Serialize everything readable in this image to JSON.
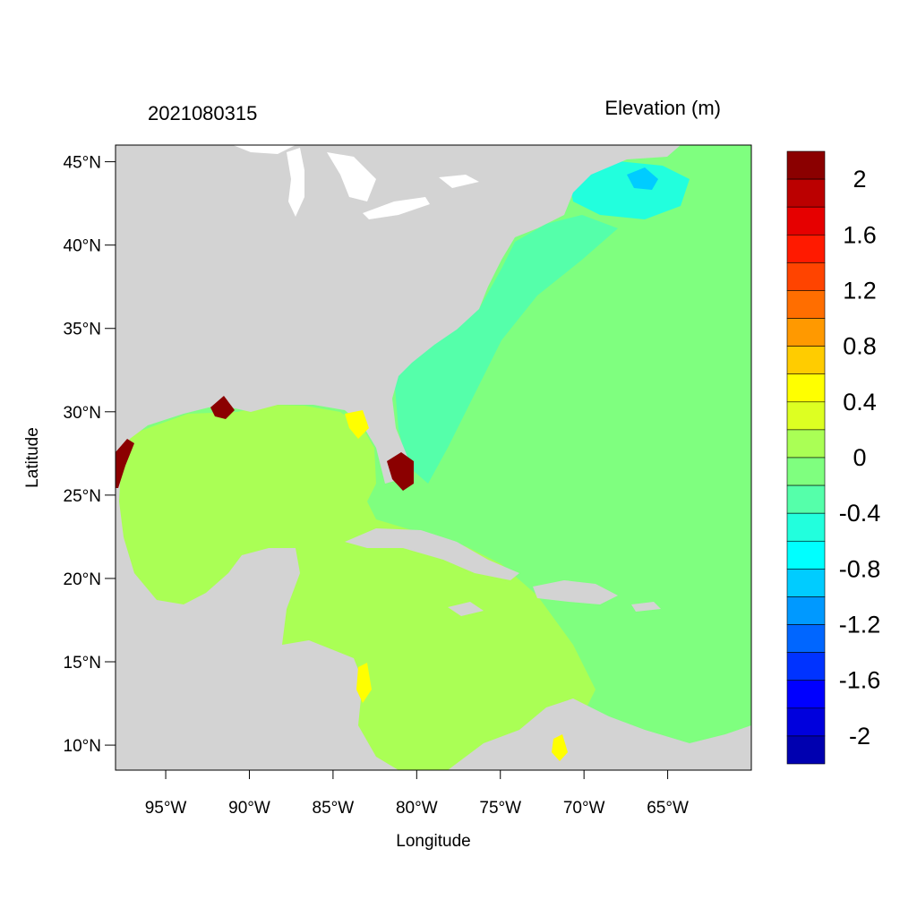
{
  "chart_data": {
    "type": "heatmap",
    "title_left": "2021080315",
    "title_right": "Elevation (m)",
    "xlabel": "Longitude",
    "ylabel": "Latitude",
    "xlim": [
      -98,
      -60
    ],
    "ylim": [
      8.5,
      46
    ],
    "x_ticks": [
      {
        "value": -95,
        "label": "95°W"
      },
      {
        "value": -90,
        "label": "90°W"
      },
      {
        "value": -85,
        "label": "85°W"
      },
      {
        "value": -80,
        "label": "80°W"
      },
      {
        "value": -75,
        "label": "75°W"
      },
      {
        "value": -70,
        "label": "70°W"
      },
      {
        "value": -65,
        "label": "65°W"
      }
    ],
    "y_ticks": [
      {
        "value": 10,
        "label": "10°N"
      },
      {
        "value": 15,
        "label": "15°N"
      },
      {
        "value": 20,
        "label": "20°N"
      },
      {
        "value": 25,
        "label": "25°N"
      },
      {
        "value": 30,
        "label": "30°N"
      },
      {
        "value": 35,
        "label": "35°N"
      },
      {
        "value": 40,
        "label": "40°N"
      },
      {
        "value": 45,
        "label": "45°N"
      }
    ],
    "colorbar": {
      "colors": [
        "#8b0000",
        "#bb0000",
        "#e60000",
        "#ff1a00",
        "#ff4400",
        "#ff6e00",
        "#ff9900",
        "#ffcc00",
        "#ffff00",
        "#ddff22",
        "#aaff55",
        "#7fff7f",
        "#55ffaa",
        "#22ffdd",
        "#00ffff",
        "#00ccff",
        "#0099ff",
        "#0066ff",
        "#0033ff",
        "#0000ff",
        "#0000dd",
        "#0000b0"
      ],
      "labels": [
        "2",
        "1.6",
        "1.2",
        "0.8",
        "0.4",
        "0",
        "-0.4",
        "-0.8",
        "-1.2",
        "-1.6",
        "-2"
      ]
    },
    "colors": {
      "land": "#d3d3d3",
      "gulf_caribbean": "#aaff55",
      "atlantic": "#7fff7f",
      "shelf": "#55ffaa",
      "gulf_of_maine": "#22ffdd",
      "bay_of_fundy": "#00ccff",
      "surge_high": "#8b0000",
      "surge_mid": "#ff4400",
      "surge_low": "#ffff00",
      "lakes": "#ffffff"
    }
  }
}
